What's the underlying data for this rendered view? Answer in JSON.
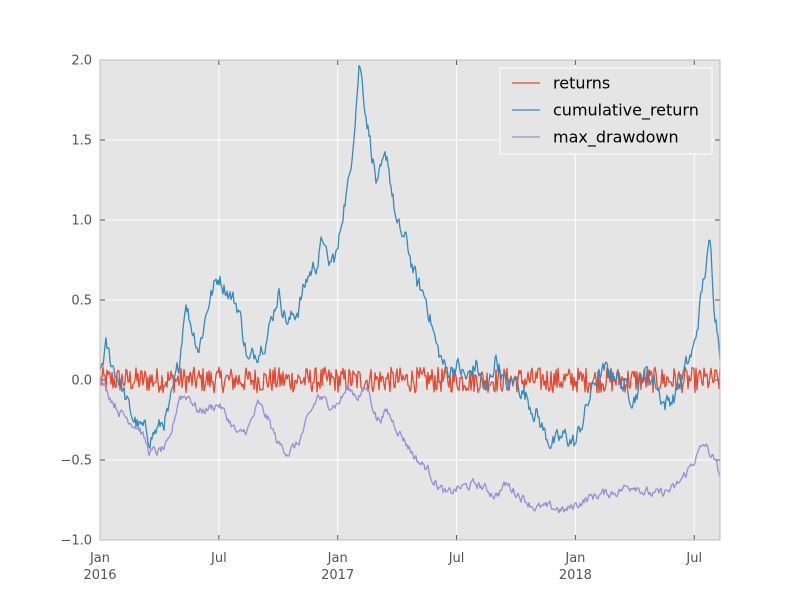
{
  "chart_data": {
    "type": "line",
    "title": "",
    "xlabel": "",
    "ylabel": "",
    "ylim": [
      -1.0,
      2.0
    ],
    "grid": true,
    "legend_position": "top-right",
    "x_range_months": [
      0,
      31.3
    ],
    "x_ticks": [
      {
        "month": 0,
        "label": "Jan",
        "year": "2016"
      },
      {
        "month": 6,
        "label": "Jul",
        "year": ""
      },
      {
        "month": 12,
        "label": "Jan",
        "year": "2017"
      },
      {
        "month": 18,
        "label": "Jul",
        "year": ""
      },
      {
        "month": 24,
        "label": "Jan",
        "year": "2018"
      },
      {
        "month": 30,
        "label": "Jul",
        "year": ""
      }
    ],
    "y_ticks": [
      -1.0,
      -0.5,
      0.0,
      0.5,
      1.0,
      1.5,
      2.0
    ],
    "y_tick_labels": [
      "−1.0",
      "−0.5",
      "0.0",
      "0.5",
      "1.0",
      "1.5",
      "2.0"
    ],
    "series": [
      {
        "name": "returns",
        "color": "#e24a33",
        "noise": 0.04,
        "points": [
          [
            0,
            0.0
          ],
          [
            31.3,
            0.0
          ]
        ]
      },
      {
        "name": "cumulative_return",
        "color": "#348abd",
        "noise": 0.05,
        "points": [
          [
            0,
            0.05
          ],
          [
            0.3,
            0.2
          ],
          [
            0.6,
            0.1
          ],
          [
            1,
            0.0
          ],
          [
            1.5,
            -0.2
          ],
          [
            2,
            -0.3
          ],
          [
            2.5,
            -0.35
          ],
          [
            3,
            -0.3
          ],
          [
            3.5,
            -0.2
          ],
          [
            4,
            0.1
          ],
          [
            4.3,
            0.5
          ],
          [
            4.6,
            0.35
          ],
          [
            5,
            0.2
          ],
          [
            5.5,
            0.5
          ],
          [
            6,
            0.65
          ],
          [
            6.5,
            0.55
          ],
          [
            7,
            0.45
          ],
          [
            7.5,
            0.1
          ],
          [
            8,
            0.2
          ],
          [
            8.5,
            0.3
          ],
          [
            9,
            0.55
          ],
          [
            9.5,
            0.35
          ],
          [
            10,
            0.45
          ],
          [
            10.5,
            0.65
          ],
          [
            11,
            0.75
          ],
          [
            11.3,
            0.9
          ],
          [
            11.5,
            0.7
          ],
          [
            12,
            0.8
          ],
          [
            12.3,
            1.1
          ],
          [
            12.6,
            1.25
          ],
          [
            12.9,
            1.7
          ],
          [
            13.1,
            2.0
          ],
          [
            13.4,
            1.7
          ],
          [
            13.7,
            1.45
          ],
          [
            14,
            1.2
          ],
          [
            14.5,
            1.4
          ],
          [
            15,
            0.95
          ],
          [
            15.5,
            0.85
          ],
          [
            16,
            0.6
          ],
          [
            16.5,
            0.5
          ],
          [
            17,
            0.2
          ],
          [
            17.5,
            0.05
          ],
          [
            18,
            0.1
          ],
          [
            18.5,
            0.0
          ],
          [
            19,
            0.1
          ],
          [
            19.5,
            -0.1
          ],
          [
            20,
            0.15
          ],
          [
            20.5,
            -0.05
          ],
          [
            21,
            0.0
          ],
          [
            21.5,
            -0.1
          ],
          [
            22,
            -0.2
          ],
          [
            22.5,
            -0.35
          ],
          [
            23,
            -0.4
          ],
          [
            23.5,
            -0.35
          ],
          [
            24,
            -0.4
          ],
          [
            24.5,
            -0.2
          ],
          [
            25,
            0.0
          ],
          [
            25.5,
            0.05
          ],
          [
            26,
            0.05
          ],
          [
            26.5,
            -0.05
          ],
          [
            27,
            -0.1
          ],
          [
            27.5,
            0.05
          ],
          [
            28,
            0.0
          ],
          [
            28.5,
            -0.15
          ],
          [
            29,
            -0.1
          ],
          [
            29.5,
            0.05
          ],
          [
            30,
            0.2
          ],
          [
            30.5,
            0.65
          ],
          [
            30.8,
            0.85
          ],
          [
            31,
            0.5
          ],
          [
            31.3,
            0.2
          ]
        ]
      },
      {
        "name": "max_drawdown",
        "color": "#988ed5",
        "noise": 0.025,
        "points": [
          [
            0,
            0.0
          ],
          [
            0.5,
            -0.1
          ],
          [
            1,
            -0.2
          ],
          [
            2,
            -0.3
          ],
          [
            2.5,
            -0.45
          ],
          [
            3,
            -0.45
          ],
          [
            3.5,
            -0.4
          ],
          [
            4,
            -0.1
          ],
          [
            4.5,
            -0.1
          ],
          [
            5,
            -0.2
          ],
          [
            6,
            -0.15
          ],
          [
            7,
            -0.35
          ],
          [
            7.5,
            -0.3
          ],
          [
            8,
            -0.15
          ],
          [
            8.5,
            -0.25
          ],
          [
            9,
            -0.4
          ],
          [
            9.5,
            -0.45
          ],
          [
            10,
            -0.4
          ],
          [
            10.5,
            -0.25
          ],
          [
            11,
            -0.1
          ],
          [
            11.5,
            -0.15
          ],
          [
            12,
            -0.15
          ],
          [
            12.5,
            -0.05
          ],
          [
            13,
            -0.1
          ],
          [
            13.5,
            -0.05
          ],
          [
            14,
            -0.25
          ],
          [
            14.5,
            -0.2
          ],
          [
            15,
            -0.3
          ],
          [
            15.5,
            -0.4
          ],
          [
            16,
            -0.5
          ],
          [
            16.5,
            -0.55
          ],
          [
            17,
            -0.65
          ],
          [
            17.5,
            -0.72
          ],
          [
            18,
            -0.68
          ],
          [
            19,
            -0.65
          ],
          [
            20,
            -0.72
          ],
          [
            20.5,
            -0.65
          ],
          [
            21,
            -0.7
          ],
          [
            21.5,
            -0.75
          ],
          [
            22,
            -0.8
          ],
          [
            23,
            -0.8
          ],
          [
            23.5,
            -0.82
          ],
          [
            24,
            -0.78
          ],
          [
            25,
            -0.72
          ],
          [
            26,
            -0.7
          ],
          [
            27,
            -0.65
          ],
          [
            27.5,
            -0.7
          ],
          [
            28,
            -0.72
          ],
          [
            28.5,
            -0.7
          ],
          [
            29,
            -0.68
          ],
          [
            29.5,
            -0.6
          ],
          [
            30,
            -0.5
          ],
          [
            30.5,
            -0.4
          ],
          [
            31,
            -0.5
          ],
          [
            31.3,
            -0.6
          ]
        ]
      }
    ]
  }
}
